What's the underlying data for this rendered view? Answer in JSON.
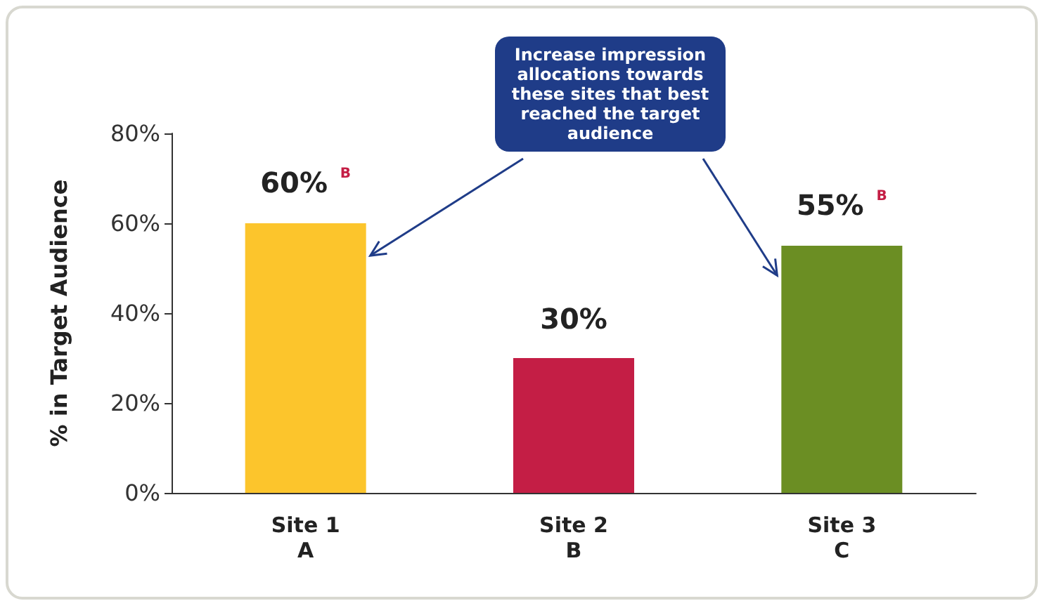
{
  "chart_data": {
    "type": "bar",
    "categories": [
      "Site 1\nA",
      "Site 2\nB",
      "Site 3\nC"
    ],
    "values": [
      60,
      30,
      55
    ],
    "colors": [
      "#fcc52c",
      "#c41e45",
      "#6b8e23"
    ],
    "value_labels": [
      "60% $^{B}$",
      "30%",
      "55% $^{B}$"
    ],
    "ylabel": "% in Target Audience",
    "ylim": [
      0,
      80
    ],
    "yticks": [
      {
        "value": 0,
        "label": "0%"
      },
      {
        "value": 20,
        "label": "20%"
      },
      {
        "value": 40,
        "label": "40%"
      },
      {
        "value": 60,
        "label": "60%"
      },
      {
        "value": 80,
        "label": "80%"
      }
    ],
    "annotations": [
      "Increase impression allocations towards these sites that best reached the target audience"
    ],
    "grid": false
  }
}
